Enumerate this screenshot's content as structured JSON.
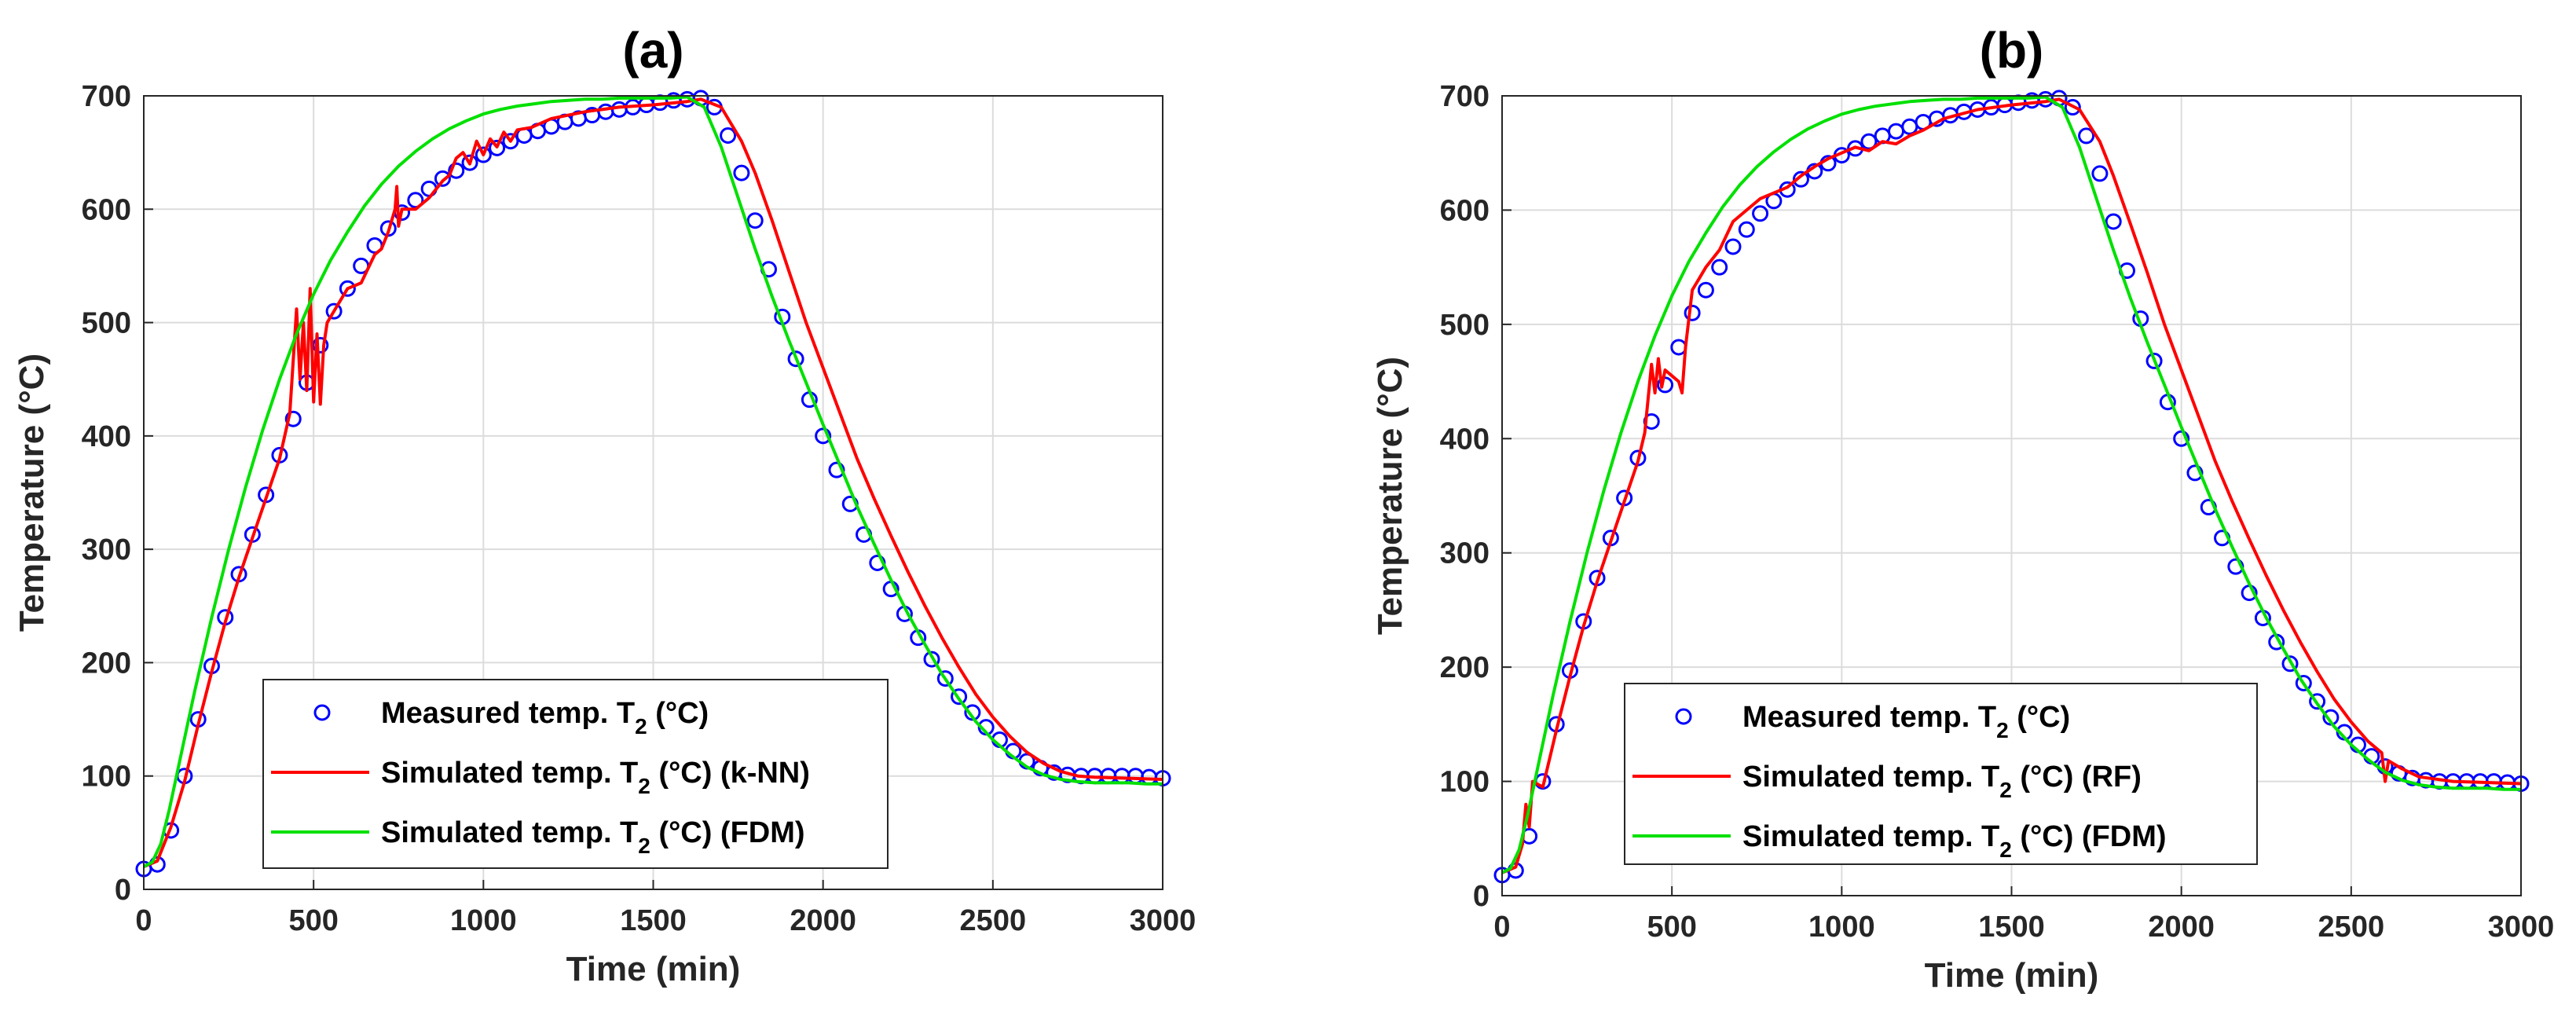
{
  "chart_data": [
    {
      "type": "line",
      "title": "(a)",
      "xlabel": "Time (min)",
      "ylabel": "Temperature (°C)",
      "xlim": [
        0,
        3000
      ],
      "ylim": [
        0,
        700
      ],
      "xticks": [
        0,
        500,
        1000,
        1500,
        2000,
        2500,
        3000
      ],
      "yticks": [
        0,
        100,
        200,
        300,
        400,
        500,
        600,
        700
      ],
      "grid": true,
      "legend_position": "bottom-center",
      "series": [
        {
          "name": "Measured temp. T2 (°C)",
          "legend_main": "Measured temp. T",
          "legend_sub": "2",
          "legend_tail": " (°C)",
          "style": "markers",
          "color": "#0000ff",
          "x": [
            0,
            40,
            80,
            120,
            160,
            200,
            240,
            280,
            320,
            360,
            400,
            440,
            480,
            520,
            560,
            600,
            640,
            680,
            720,
            760,
            800,
            840,
            880,
            920,
            960,
            1000,
            1040,
            1080,
            1120,
            1160,
            1200,
            1240,
            1280,
            1320,
            1360,
            1400,
            1440,
            1480,
            1520,
            1560,
            1600,
            1640,
            1680,
            1720,
            1760,
            1800,
            1840,
            1880,
            1920,
            1960,
            2000,
            2040,
            2080,
            2120,
            2160,
            2200,
            2240,
            2280,
            2320,
            2360,
            2400,
            2440,
            2480,
            2520,
            2560,
            2600,
            2640,
            2680,
            2720,
            2760,
            2800,
            2840,
            2880,
            2920,
            2960,
            3000
          ],
          "y": [
            18,
            22,
            52,
            100,
            150,
            197,
            240,
            278,
            313,
            348,
            383,
            415,
            447,
            480,
            510,
            530,
            550,
            568,
            583,
            597,
            608,
            618,
            627,
            634,
            641,
            648,
            654,
            660,
            665,
            669,
            673,
            677,
            680,
            683,
            686,
            688,
            690,
            692,
            694,
            696,
            697,
            698,
            690,
            665,
            632,
            590,
            547,
            505,
            468,
            432,
            400,
            370,
            340,
            313,
            288,
            265,
            243,
            222,
            203,
            186,
            170,
            156,
            143,
            132,
            122,
            113,
            107,
            103,
            101,
            100,
            100,
            100,
            100,
            100,
            99,
            98
          ]
        },
        {
          "name": "Simulated temp. T2 (°C) (k-NN)",
          "legend_main": "Simulated temp. T",
          "legend_sub": "2",
          "legend_tail": " (°C) (k-NN)",
          "style": "line",
          "color": "#ff0000",
          "x": [
            0,
            40,
            60,
            80,
            120,
            160,
            200,
            240,
            280,
            320,
            360,
            400,
            430,
            450,
            460,
            470,
            480,
            490,
            500,
            510,
            520,
            530,
            540,
            560,
            600,
            640,
            680,
            700,
            720,
            740,
            745,
            750,
            760,
            800,
            840,
            880,
            900,
            920,
            940,
            960,
            980,
            1000,
            1020,
            1040,
            1060,
            1080,
            1100,
            1140,
            1200,
            1300,
            1400,
            1500,
            1600,
            1640,
            1700,
            1760,
            1800,
            1850,
            1900,
            1950,
            2000,
            2050,
            2100,
            2150,
            2200,
            2250,
            2300,
            2350,
            2400,
            2450,
            2500,
            2550,
            2600,
            2650,
            2700,
            2750,
            2800,
            2900,
            3000
          ],
          "y": [
            20,
            25,
            40,
            55,
            95,
            145,
            192,
            236,
            275,
            310,
            345,
            380,
            420,
            512,
            450,
            500,
            440,
            530,
            430,
            490,
            428,
            480,
            500,
            510,
            530,
            535,
            560,
            565,
            580,
            600,
            620,
            585,
            600,
            600,
            610,
            625,
            630,
            645,
            650,
            640,
            660,
            648,
            662,
            655,
            668,
            660,
            670,
            672,
            680,
            686,
            690,
            692,
            695,
            697,
            690,
            660,
            632,
            590,
            545,
            500,
            460,
            420,
            380,
            345,
            312,
            280,
            250,
            222,
            196,
            172,
            152,
            135,
            121,
            111,
            104,
            100,
            99,
            98,
            97
          ]
        },
        {
          "name": "Simulated temp. T2 (°C) (FDM)",
          "legend_main": "Simulated temp. T",
          "legend_sub": "2",
          "legend_tail": " (°C) (FDM)",
          "style": "line",
          "color": "#00e000",
          "x": [
            0,
            25,
            50,
            75,
            100,
            125,
            150,
            200,
            250,
            300,
            350,
            400,
            450,
            500,
            550,
            600,
            650,
            700,
            750,
            800,
            850,
            900,
            950,
            1000,
            1050,
            1100,
            1150,
            1200,
            1250,
            1300,
            1350,
            1400,
            1450,
            1500,
            1550,
            1600,
            1650,
            1700,
            1750,
            1800,
            1850,
            1900,
            1950,
            2000,
            2050,
            2100,
            2150,
            2200,
            2250,
            2300,
            2350,
            2400,
            2450,
            2500,
            2550,
            2600,
            2650,
            2700,
            2750,
            2800,
            2850,
            2900,
            2950,
            3000
          ],
          "y": [
            20,
            24,
            40,
            70,
            105,
            140,
            175,
            240,
            300,
            355,
            405,
            450,
            490,
            525,
            555,
            580,
            603,
            622,
            638,
            651,
            662,
            671,
            678,
            684,
            688,
            691,
            693,
            695,
            696,
            697,
            697,
            698,
            698,
            698,
            698,
            699,
            690,
            655,
            610,
            565,
            523,
            484,
            447,
            410,
            374,
            338,
            305,
            273,
            243,
            216,
            190,
            168,
            148,
            132,
            119,
            108,
            101,
            97,
            95,
            94,
            94,
            94,
            93,
            93
          ]
        }
      ]
    },
    {
      "type": "line",
      "title": "(b)",
      "xlabel": "Time (min)",
      "ylabel": "Temperature (°C)",
      "xlim": [
        0,
        3000
      ],
      "ylim": [
        0,
        700
      ],
      "xticks": [
        0,
        500,
        1000,
        1500,
        2000,
        2500,
        3000
      ],
      "yticks": [
        0,
        100,
        200,
        300,
        400,
        500,
        600,
        700
      ],
      "grid": true,
      "legend_position": "bottom-center",
      "series": [
        {
          "name": "Measured temp. T2 (°C)",
          "legend_main": "Measured temp. T",
          "legend_sub": "2",
          "legend_tail": " (°C)",
          "style": "markers",
          "color": "#0000ff",
          "x": [
            0,
            40,
            80,
            120,
            160,
            200,
            240,
            280,
            320,
            360,
            400,
            440,
            480,
            520,
            560,
            600,
            640,
            680,
            720,
            760,
            800,
            840,
            880,
            920,
            960,
            1000,
            1040,
            1080,
            1120,
            1160,
            1200,
            1240,
            1280,
            1320,
            1360,
            1400,
            1440,
            1480,
            1520,
            1560,
            1600,
            1640,
            1680,
            1720,
            1760,
            1800,
            1840,
            1880,
            1920,
            1960,
            2000,
            2040,
            2080,
            2120,
            2160,
            2200,
            2240,
            2280,
            2320,
            2360,
            2400,
            2440,
            2480,
            2520,
            2560,
            2600,
            2640,
            2680,
            2720,
            2760,
            2800,
            2840,
            2880,
            2920,
            2960,
            3000
          ],
          "y": [
            18,
            22,
            52,
            100,
            150,
            197,
            240,
            278,
            313,
            348,
            383,
            415,
            447,
            480,
            510,
            530,
            550,
            568,
            583,
            597,
            608,
            618,
            627,
            634,
            641,
            648,
            654,
            660,
            665,
            669,
            673,
            677,
            680,
            683,
            686,
            688,
            690,
            692,
            694,
            696,
            697,
            698,
            690,
            665,
            632,
            590,
            547,
            505,
            468,
            432,
            400,
            370,
            340,
            313,
            288,
            265,
            243,
            222,
            203,
            186,
            170,
            156,
            143,
            132,
            122,
            113,
            107,
            103,
            101,
            100,
            100,
            100,
            100,
            100,
            99,
            98
          ]
        },
        {
          "name": "Simulated temp. T2 (°C) (RF)",
          "legend_main": "Simulated temp. T",
          "legend_sub": "2",
          "legend_tail": " (°C) (RF)",
          "style": "line",
          "color": "#ff0000",
          "x": [
            0,
            40,
            60,
            70,
            80,
            90,
            120,
            160,
            200,
            240,
            280,
            320,
            360,
            400,
            420,
            440,
            450,
            460,
            470,
            480,
            500,
            520,
            530,
            540,
            560,
            580,
            600,
            640,
            680,
            720,
            760,
            800,
            840,
            880,
            920,
            960,
            1000,
            1040,
            1080,
            1120,
            1160,
            1200,
            1240,
            1300,
            1400,
            1500,
            1600,
            1640,
            1700,
            1760,
            1800,
            1850,
            1900,
            1950,
            2000,
            2050,
            2100,
            2150,
            2200,
            2250,
            2300,
            2350,
            2400,
            2450,
            2500,
            2550,
            2590,
            2600,
            2610,
            2650,
            2700,
            2750,
            2800,
            2900,
            3000
          ],
          "y": [
            20,
            25,
            45,
            80,
            60,
            100,
            95,
            145,
            192,
            236,
            275,
            310,
            345,
            380,
            405,
            465,
            440,
            470,
            445,
            460,
            455,
            450,
            440,
            480,
            530,
            540,
            550,
            565,
            590,
            600,
            610,
            615,
            620,
            630,
            638,
            645,
            650,
            655,
            652,
            660,
            658,
            665,
            670,
            680,
            688,
            692,
            695,
            697,
            688,
            660,
            630,
            588,
            545,
            500,
            460,
            420,
            380,
            345,
            312,
            280,
            250,
            222,
            196,
            172,
            152,
            135,
            125,
            100,
            118,
            111,
            104,
            102,
            100,
            99,
            98
          ]
        },
        {
          "name": "Simulated temp. T2 (°C) (FDM)",
          "legend_main": "Simulated temp. T",
          "legend_sub": "2",
          "legend_tail": " (°C) (FDM)",
          "style": "line",
          "color": "#00e000",
          "x": [
            0,
            25,
            50,
            75,
            100,
            125,
            150,
            200,
            250,
            300,
            350,
            400,
            450,
            500,
            550,
            600,
            650,
            700,
            750,
            800,
            850,
            900,
            950,
            1000,
            1050,
            1100,
            1150,
            1200,
            1250,
            1300,
            1350,
            1400,
            1450,
            1500,
            1550,
            1600,
            1650,
            1700,
            1750,
            1800,
            1850,
            1900,
            1950,
            2000,
            2050,
            2100,
            2150,
            2200,
            2250,
            2300,
            2350,
            2400,
            2450,
            2500,
            2550,
            2600,
            2650,
            2700,
            2750,
            2800,
            2850,
            2900,
            2950,
            3000
          ],
          "y": [
            20,
            24,
            40,
            70,
            105,
            140,
            175,
            240,
            300,
            355,
            405,
            450,
            490,
            525,
            555,
            580,
            603,
            622,
            638,
            651,
            662,
            671,
            678,
            684,
            688,
            691,
            693,
            695,
            696,
            697,
            697,
            698,
            698,
            698,
            698,
            699,
            690,
            655,
            610,
            565,
            523,
            484,
            447,
            410,
            374,
            338,
            305,
            273,
            243,
            216,
            190,
            168,
            148,
            132,
            119,
            108,
            101,
            97,
            95,
            94,
            94,
            94,
            93,
            93
          ]
        }
      ]
    }
  ]
}
